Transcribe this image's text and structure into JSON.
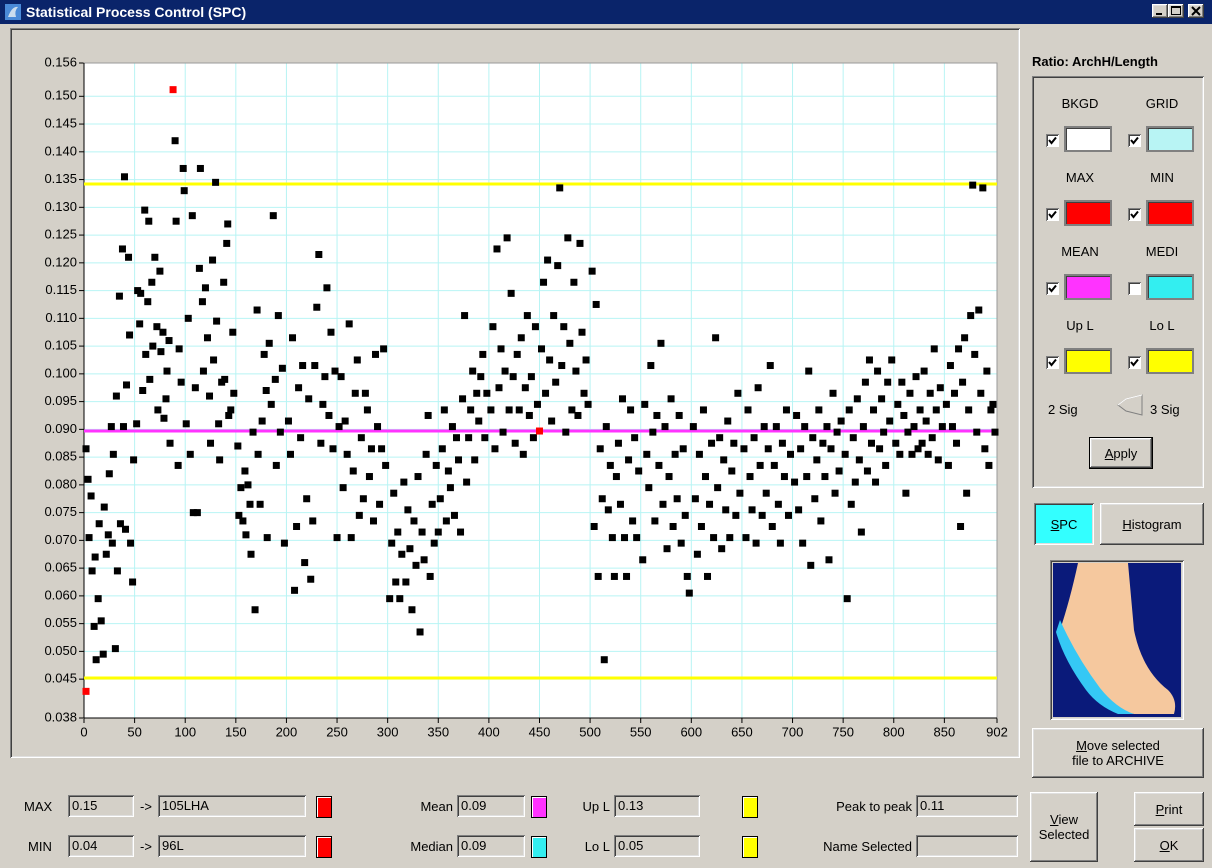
{
  "window": {
    "title": "Statistical Process Control (SPC)"
  },
  "chart_data": {
    "type": "scatter",
    "xlim": [
      0,
      902
    ],
    "ylim": [
      0.038,
      0.156
    ],
    "xticks": [
      0,
      50,
      100,
      150,
      200,
      250,
      300,
      350,
      400,
      450,
      500,
      550,
      600,
      650,
      700,
      750,
      800,
      850,
      902
    ],
    "yticks": [
      0.038,
      0.045,
      {
        "value": 0.05,
        "label": "0.050"
      },
      0.055,
      {
        "value": 0.06,
        "label": "0.060"
      },
      0.065,
      {
        "value": 0.07,
        "label": "0.070"
      },
      0.075,
      {
        "value": 0.08,
        "label": "0.080"
      },
      0.085,
      {
        "value": 0.09,
        "label": "0.090"
      },
      0.095,
      {
        "value": 0.1,
        "label": "0.100"
      },
      0.105,
      {
        "value": 0.11,
        "label": "0.110"
      },
      0.115,
      {
        "value": 0.12,
        "label": "0.120"
      },
      0.125,
      {
        "value": 0.13,
        "label": "0.130"
      },
      0.135,
      {
        "value": 0.14,
        "label": "0.140"
      },
      0.145,
      {
        "value": 0.15,
        "label": "0.150"
      },
      0.156
    ],
    "grid": true,
    "background": "#ffffff",
    "grid_color": "#b8f4f4",
    "reference_lines": [
      {
        "value": 0.1342,
        "color": "#ffff00"
      },
      {
        "value": 0.0897,
        "color": "#ff33ff"
      },
      {
        "value": 0.0452,
        "color": "#ffff00"
      }
    ],
    "series": [
      {
        "color": "#000000",
        "x": [
          2,
          4,
          5,
          7,
          8,
          10,
          11,
          12,
          14,
          15,
          17,
          19,
          20,
          22,
          24,
          25,
          27,
          28,
          29,
          31,
          32,
          33,
          35,
          36,
          38,
          39,
          40,
          41,
          42,
          44,
          45,
          46,
          48,
          49,
          52,
          53,
          55,
          56,
          58,
          60,
          61,
          63,
          64,
          65,
          67,
          68,
          70,
          72,
          73,
          75,
          76,
          78,
          79,
          81,
          82,
          84,
          85,
          90,
          91,
          93,
          94,
          96,
          98,
          99,
          101,
          103,
          105,
          107,
          108,
          110,
          112,
          114,
          115,
          117,
          118,
          120,
          122,
          124,
          125,
          127,
          128,
          130,
          131,
          133,
          134,
          136,
          138,
          139,
          141,
          142,
          143,
          145,
          147,
          148,
          152,
          153,
          155,
          157,
          159,
          160,
          162,
          164,
          165,
          167,
          169,
          171,
          172,
          174,
          176,
          178,
          180,
          181,
          183,
          185,
          187,
          189,
          190,
          192,
          194,
          196,
          198,
          202,
          204,
          206,
          208,
          210,
          212,
          214,
          216,
          218,
          220,
          222,
          224,
          226,
          228,
          230,
          232,
          234,
          236,
          238,
          240,
          242,
          244,
          246,
          248,
          250,
          252,
          254,
          256,
          258,
          260,
          262,
          264,
          266,
          268,
          270,
          272,
          274,
          276,
          278,
          280,
          282,
          284,
          286,
          288,
          290,
          292,
          294,
          296,
          298,
          302,
          304,
          306,
          308,
          310,
          312,
          314,
          316,
          318,
          320,
          322,
          324,
          326,
          328,
          330,
          332,
          334,
          336,
          338,
          340,
          342,
          344,
          346,
          348,
          350,
          352,
          354,
          356,
          358,
          360,
          362,
          364,
          366,
          368,
          370,
          372,
          374,
          376,
          378,
          380,
          382,
          384,
          386,
          388,
          390,
          392,
          394,
          396,
          398,
          402,
          404,
          406,
          408,
          410,
          412,
          414,
          416,
          418,
          420,
          422,
          424,
          426,
          428,
          430,
          432,
          434,
          436,
          438,
          440,
          442,
          444,
          446,
          448,
          452,
          454,
          456,
          458,
          460,
          462,
          464,
          466,
          468,
          470,
          472,
          474,
          476,
          478,
          480,
          482,
          484,
          486,
          488,
          490,
          492,
          494,
          496,
          498,
          502,
          504,
          506,
          508,
          510,
          512,
          514,
          516,
          518,
          520,
          522,
          524,
          526,
          528,
          530,
          532,
          534,
          536,
          538,
          540,
          542,
          544,
          546,
          548,
          552,
          554,
          556,
          558,
          560,
          562,
          564,
          566,
          568,
          570,
          572,
          574,
          576,
          578,
          580,
          582,
          584,
          586,
          588,
          590,
          592,
          594,
          596,
          598,
          602,
          604,
          606,
          608,
          610,
          612,
          614,
          616,
          618,
          620,
          622,
          624,
          626,
          628,
          630,
          632,
          634,
          636,
          638,
          640,
          642,
          644,
          646,
          648,
          652,
          654,
          656,
          658,
          660,
          662,
          664,
          666,
          668,
          670,
          672,
          674,
          676,
          678,
          680,
          682,
          684,
          686,
          688,
          690,
          692,
          694,
          696,
          698,
          702,
          704,
          706,
          708,
          710,
          712,
          714,
          716,
          718,
          720,
          722,
          724,
          726,
          728,
          730,
          732,
          734,
          736,
          738,
          740,
          742,
          744,
          746,
          748,
          752,
          754,
          756,
          758,
          760,
          762,
          764,
          766,
          768,
          770,
          772,
          774,
          776,
          778,
          780,
          782,
          784,
          786,
          788,
          790,
          792,
          794,
          796,
          798,
          802,
          804,
          806,
          808,
          810,
          812,
          814,
          816,
          818,
          820,
          822,
          824,
          826,
          828,
          830,
          832,
          834,
          836,
          838,
          840,
          842,
          844,
          846,
          848,
          852,
          854,
          856,
          858,
          860,
          862,
          864,
          866,
          868,
          870,
          872,
          874,
          876,
          878,
          880,
          882,
          884,
          886,
          888,
          890,
          892,
          894,
          896,
          898,
          900
        ],
        "y": [
          0.0865,
          0.081,
          0.0705,
          0.078,
          0.0645,
          0.0545,
          0.067,
          0.0485,
          0.0595,
          0.073,
          0.0555,
          0.0495,
          0.076,
          0.0675,
          0.071,
          0.082,
          0.0905,
          0.0695,
          0.0855,
          0.0505,
          0.096,
          0.0645,
          0.114,
          0.073,
          0.1225,
          0.0905,
          0.1355,
          0.072,
          0.098,
          0.121,
          0.107,
          0.0695,
          0.0625,
          0.0845,
          0.091,
          0.115,
          0.109,
          0.1145,
          0.097,
          0.1295,
          0.1035,
          0.113,
          0.1275,
          0.099,
          0.1165,
          0.105,
          0.121,
          0.1085,
          0.0935,
          0.1185,
          0.104,
          0.1075,
          0.092,
          0.0955,
          0.1005,
          0.106,
          0.0875,
          0.142,
          0.1275,
          0.0835,
          0.1045,
          0.0985,
          0.137,
          0.133,
          0.091,
          0.11,
          0.0855,
          0.1285,
          0.075,
          0.0975,
          0.075,
          0.119,
          0.137,
          0.113,
          0.1005,
          0.1155,
          0.1065,
          0.096,
          0.0875,
          0.1205,
          0.1025,
          0.1345,
          0.1095,
          0.091,
          0.0845,
          0.0985,
          0.1165,
          0.099,
          0.1235,
          0.127,
          0.0925,
          0.0935,
          0.1075,
          0.0965,
          0.087,
          0.0745,
          0.0795,
          0.0735,
          0.0825,
          0.071,
          0.08,
          0.0765,
          0.0675,
          0.0895,
          0.0575,
          0.1115,
          0.0855,
          0.0765,
          0.0915,
          0.1035,
          0.097,
          0.0705,
          0.1055,
          0.0945,
          0.1285,
          0.099,
          0.0835,
          0.1105,
          0.0895,
          0.101,
          0.0695,
          0.0915,
          0.0855,
          0.1065,
          0.061,
          0.0725,
          0.0975,
          0.0885,
          0.1015,
          0.066,
          0.0775,
          0.0955,
          0.063,
          0.0735,
          0.1015,
          0.112,
          0.1215,
          0.0875,
          0.0945,
          0.0995,
          0.1155,
          0.0925,
          0.1075,
          0.0865,
          0.1005,
          0.0705,
          0.0905,
          0.0995,
          0.0795,
          0.0915,
          0.0855,
          0.109,
          0.0705,
          0.0825,
          0.0965,
          0.1025,
          0.0745,
          0.0885,
          0.0775,
          0.0965,
          0.0935,
          0.0815,
          0.0865,
          0.0735,
          0.1035,
          0.0905,
          0.0765,
          0.0865,
          0.1045,
          0.0835,
          0.0595,
          0.0695,
          0.0785,
          0.0625,
          0.0715,
          0.0595,
          0.0675,
          0.0805,
          0.0625,
          0.0755,
          0.0685,
          0.0575,
          0.0735,
          0.0655,
          0.0815,
          0.0535,
          0.0715,
          0.0665,
          0.0855,
          0.0925,
          0.0635,
          0.0765,
          0.0695,
          0.0835,
          0.0715,
          0.0775,
          0.0865,
          0.0935,
          0.0735,
          0.0825,
          0.0795,
          0.0905,
          0.0745,
          0.0885,
          0.0845,
          0.0715,
          0.0955,
          0.1105,
          0.0805,
          0.0885,
          0.0935,
          0.1005,
          0.0845,
          0.0965,
          0.0915,
          0.0995,
          0.1035,
          0.0885,
          0.0965,
          0.0935,
          0.1085,
          0.0865,
          0.1225,
          0.0975,
          0.1045,
          0.0895,
          0.1005,
          0.1245,
          0.0935,
          0.1145,
          0.0995,
          0.0875,
          0.1035,
          0.0935,
          0.1065,
          0.0855,
          0.0975,
          0.1105,
          0.0925,
          0.0995,
          0.0885,
          0.1085,
          0.0945,
          0.1045,
          0.1165,
          0.0965,
          0.1205,
          0.1025,
          0.0915,
          0.1105,
          0.0985,
          0.1195,
          0.1335,
          0.1015,
          0.1085,
          0.0895,
          0.1245,
          0.1055,
          0.0935,
          0.1165,
          0.1005,
          0.0925,
          0.1235,
          0.1075,
          0.0965,
          0.1025,
          0.0945,
          0.1185,
          0.0725,
          0.1125,
          0.0635,
          0.0865,
          0.0775,
          0.0485,
          0.0905,
          0.0755,
          0.0835,
          0.0705,
          0.0635,
          0.0815,
          0.0875,
          0.0765,
          0.0955,
          0.0705,
          0.0635,
          0.0845,
          0.0935,
          0.0735,
          0.0885,
          0.0705,
          0.0825,
          0.0665,
          0.0945,
          0.0855,
          0.0795,
          0.1015,
          0.0895,
          0.0735,
          0.0925,
          0.0835,
          0.1055,
          0.0765,
          0.0905,
          0.0685,
          0.0815,
          0.0955,
          0.0725,
          0.0855,
          0.0775,
          0.0925,
          0.0695,
          0.0865,
          0.0745,
          0.0635,
          0.0605,
          0.0905,
          0.0775,
          0.0675,
          0.0855,
          0.0725,
          0.0935,
          0.0815,
          0.0635,
          0.0765,
          0.0875,
          0.0705,
          0.1065,
          0.0795,
          0.0885,
          0.0685,
          0.0845,
          0.0755,
          0.0915,
          0.0705,
          0.0825,
          0.0875,
          0.0745,
          0.0965,
          0.0785,
          0.0865,
          0.0705,
          0.0935,
          0.0815,
          0.0755,
          0.0885,
          0.0695,
          0.0975,
          0.0835,
          0.0745,
          0.0905,
          0.0785,
          0.0865,
          0.1015,
          0.0725,
          0.0835,
          0.0905,
          0.0765,
          0.0695,
          0.0875,
          0.0815,
          0.0935,
          0.0745,
          0.0855,
          0.0805,
          0.0925,
          0.0755,
          0.0865,
          0.0695,
          0.0905,
          0.0815,
          0.1005,
          0.0655,
          0.0885,
          0.0775,
          0.0845,
          0.0935,
          0.0735,
          0.0875,
          0.0815,
          0.0905,
          0.0665,
          0.0865,
          0.0965,
          0.0785,
          0.0895,
          0.0825,
          0.0915,
          0.0855,
          0.0595,
          0.0935,
          0.0765,
          0.0885,
          0.0805,
          0.0955,
          0.0845,
          0.0715,
          0.0905,
          0.0985,
          0.0825,
          0.1025,
          0.0875,
          0.0935,
          0.0805,
          0.1005,
          0.0865,
          0.0955,
          0.0895,
          0.0835,
          0.0985,
          0.0915,
          0.1025,
          0.0875,
          0.0945,
          0.0855,
          0.0985,
          0.0925,
          0.0785,
          0.0895,
          0.0965,
          0.0855,
          0.0905,
          0.0995,
          0.0865,
          0.0935,
          0.0875,
          0.1005,
          0.0915,
          0.0855,
          0.0965,
          0.0885,
          0.1045,
          0.0935,
          0.0845,
          0.0975,
          0.0905,
          0.0945,
          0.0835,
          0.1015,
          0.0905,
          0.0965,
          0.0875,
          0.1045,
          0.0725,
          0.0985,
          0.1065,
          0.0785,
          0.0935,
          0.1105,
          0.134,
          0.1035,
          0.0895,
          0.1115,
          0.0965,
          0.1335,
          0.0865,
          0.1005,
          0.0835,
          0.0935,
          0.0945,
          0.0895
        ]
      },
      {
        "color": "#ff0000",
        "x": [
          88,
          2,
          450
        ],
        "y": [
          0.1512,
          0.0428,
          0.0897
        ]
      }
    ]
  },
  "panel": {
    "title": "Ratio: ArchH/Length",
    "settings": [
      {
        "label": "BKGD",
        "checked": true,
        "color": "#ffffff"
      },
      {
        "label": "GRID",
        "checked": true,
        "color": "#b8f4f4"
      },
      {
        "label": "MAX",
        "checked": true,
        "color": "#ff0000"
      },
      {
        "label": "MIN",
        "checked": true,
        "color": "#ff0000"
      },
      {
        "label": "MEAN",
        "checked": true,
        "color": "#ff33ff"
      },
      {
        "label": "MEDI",
        "checked": false,
        "color": "#33eef0"
      },
      {
        "label": "Up L",
        "checked": true,
        "color": "#ffff00"
      },
      {
        "label": "Lo L",
        "checked": true,
        "color": "#ffff00"
      }
    ],
    "sig_low": "2 Sig",
    "sig_high": "3 Sig",
    "apply": "Apply"
  },
  "views": {
    "spc": "SPC",
    "histogram": "Histogram",
    "active_color": "#33ffff"
  },
  "actions": {
    "archive": [
      "Move selected",
      "file to  ARCHIVE"
    ],
    "view": "View Selected",
    "print": "Print",
    "ok": "OK"
  },
  "stats": {
    "max": {
      "label": "MAX",
      "value": 0.15,
      "arrow": "->",
      "file": "105LHA",
      "color": "#ff0000"
    },
    "min": {
      "label": "MIN",
      "value": 0.04,
      "arrow": "->",
      "file": "96L",
      "color": "#ff0000"
    },
    "mean": {
      "label": "Mean",
      "value": 0.09,
      "color": "#ff33ff"
    },
    "median": {
      "label": "Median",
      "value": 0.09,
      "color": "#33eef0"
    },
    "upper": {
      "label": "Up L",
      "value": 0.13,
      "color": "#ffff00"
    },
    "lower": {
      "label": "Lo L",
      "value": 0.05,
      "color": "#ffff00"
    },
    "peak": {
      "label": "Peak to peak",
      "value": 0.11
    },
    "name_selected": {
      "label": "Name Selected"
    }
  }
}
